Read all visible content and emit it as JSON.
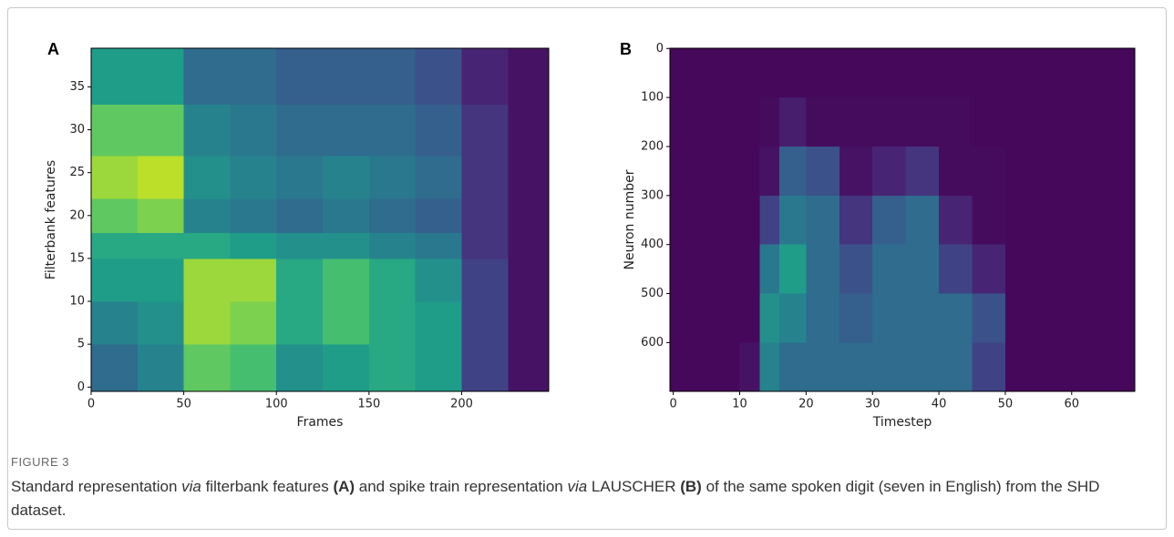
{
  "figure": {
    "label": "FIGURE 3",
    "caption": [
      "Standard representation ",
      "via",
      " filterbank features ",
      "(A)",
      " and spike train representation ",
      "via",
      " LAUSCHER ",
      "(B)",
      " of the same spoken digit (seven in English) from the SHD dataset."
    ]
  },
  "chart_data": [
    {
      "type": "heatmap",
      "panel": "A",
      "xlabel": "Frames",
      "ylabel": "Filterbank features",
      "colormap": "viridis",
      "xlim": [
        0,
        247
      ],
      "ylim": [
        -0.5,
        39.5
      ],
      "xticks": [
        0,
        50,
        100,
        150,
        200
      ],
      "yticks": [
        0,
        5,
        10,
        15,
        20,
        25,
        30,
        35
      ],
      "x_edges": [
        0,
        25,
        50,
        75,
        100,
        125,
        150,
        175,
        200,
        225,
        247
      ],
      "y_edges": [
        -0.5,
        5,
        10,
        15,
        18,
        22,
        27,
        33,
        39.5
      ],
      "values": [
        [
          0.35,
          0.45,
          0.75,
          0.7,
          0.5,
          0.55,
          0.6,
          0.55,
          0.2,
          0.05
        ],
        [
          0.45,
          0.5,
          0.85,
          0.8,
          0.6,
          0.7,
          0.6,
          0.55,
          0.2,
          0.05
        ],
        [
          0.55,
          0.55,
          0.85,
          0.85,
          0.6,
          0.7,
          0.6,
          0.5,
          0.2,
          0.05
        ],
        [
          0.6,
          0.6,
          0.6,
          0.55,
          0.5,
          0.5,
          0.45,
          0.4,
          0.15,
          0.05
        ],
        [
          0.75,
          0.8,
          0.45,
          0.4,
          0.35,
          0.4,
          0.35,
          0.3,
          0.15,
          0.05
        ],
        [
          0.85,
          0.9,
          0.5,
          0.45,
          0.4,
          0.45,
          0.4,
          0.35,
          0.15,
          0.05
        ],
        [
          0.75,
          0.75,
          0.45,
          0.4,
          0.35,
          0.35,
          0.35,
          0.3,
          0.15,
          0.05
        ],
        [
          0.55,
          0.55,
          0.35,
          0.35,
          0.3,
          0.3,
          0.3,
          0.25,
          0.1,
          0.05
        ]
      ]
    },
    {
      "type": "heatmap",
      "panel": "B",
      "xlabel": "Timestep",
      "ylabel": "Neuron number",
      "colormap": "viridis",
      "xlim": [
        -0.5,
        69.5
      ],
      "ylim": [
        699.5,
        -0.5
      ],
      "xticks": [
        0,
        10,
        20,
        30,
        40,
        50,
        60
      ],
      "yticks": [
        0,
        100,
        200,
        300,
        400,
        500,
        600
      ],
      "x_edges": [
        -0.5,
        5,
        10,
        13,
        16,
        20,
        25,
        30,
        35,
        40,
        45,
        50,
        69.5
      ],
      "y_edges": [
        -0.5,
        100,
        200,
        300,
        400,
        500,
        600,
        699.5
      ],
      "values": [
        [
          0.02,
          0.02,
          0.02,
          0.02,
          0.02,
          0.02,
          0.02,
          0.02,
          0.02,
          0.02,
          0.02,
          0.02
        ],
        [
          0.02,
          0.02,
          0.02,
          0.03,
          0.08,
          0.03,
          0.03,
          0.03,
          0.03,
          0.03,
          0.02,
          0.02
        ],
        [
          0.02,
          0.02,
          0.02,
          0.05,
          0.3,
          0.25,
          0.05,
          0.1,
          0.15,
          0.03,
          0.03,
          0.02
        ],
        [
          0.02,
          0.02,
          0.02,
          0.2,
          0.4,
          0.35,
          0.15,
          0.3,
          0.35,
          0.1,
          0.03,
          0.02
        ],
        [
          0.02,
          0.02,
          0.02,
          0.4,
          0.55,
          0.35,
          0.25,
          0.35,
          0.35,
          0.2,
          0.1,
          0.02
        ],
        [
          0.02,
          0.02,
          0.02,
          0.5,
          0.45,
          0.35,
          0.3,
          0.35,
          0.35,
          0.35,
          0.25,
          0.02
        ],
        [
          0.02,
          0.02,
          0.05,
          0.45,
          0.35,
          0.35,
          0.35,
          0.35,
          0.35,
          0.35,
          0.2,
          0.02
        ]
      ]
    }
  ]
}
